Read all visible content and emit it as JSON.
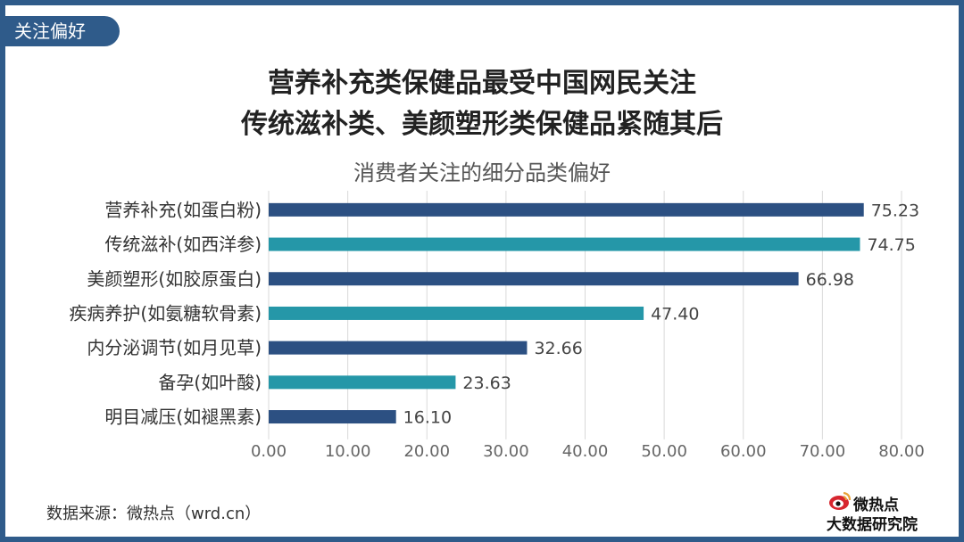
{
  "tag": "关注偏好",
  "headline": {
    "line1": "营养补充类保健品最受中国网民关注",
    "line2": "传统滋补类、美颜塑形类保健品紧随其后"
  },
  "source": "数据来源：微热点（wrd.cn）",
  "logo": {
    "brand": "微热点",
    "institute": "大数据研究院",
    "icon": "weibo-eye-icon"
  },
  "colors": {
    "frame": "#2f5b8a",
    "bar_dark": "#2c5082",
    "bar_teal": "#2597a8",
    "grid": "#d9d9d9"
  },
  "chart_data": {
    "type": "bar",
    "orientation": "horizontal",
    "title": "消费者关注的细分品类偏好",
    "categories": [
      "营养补充(如蛋白粉)",
      "传统滋补(如西洋参)",
      "美颜塑形(如胶原蛋白)",
      "疾病养护(如氨糖软骨素)",
      "内分泌调节(如月见草)",
      "备孕(如叶酸)",
      "明目减压(如褪黑素)"
    ],
    "values": [
      75.23,
      74.75,
      66.98,
      47.4,
      32.66,
      23.63,
      16.1
    ],
    "value_labels": [
      "75.23",
      "74.75",
      "66.98",
      "47.40",
      "32.66",
      "23.63",
      "16.10"
    ],
    "bar_colors": [
      "#2c5082",
      "#2597a8",
      "#2c5082",
      "#2597a8",
      "#2c5082",
      "#2597a8",
      "#2c5082"
    ],
    "xticks": [
      "0.00",
      "10.00",
      "20.00",
      "30.00",
      "40.00",
      "50.00",
      "60.00",
      "70.00",
      "80.00"
    ],
    "xlim": [
      0,
      80
    ],
    "grid": true,
    "xlabel": "",
    "ylabel": ""
  }
}
